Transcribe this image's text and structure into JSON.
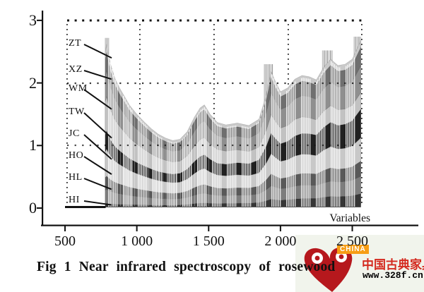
{
  "figure": {
    "caption": "Fig 1  Near infrared spectroscopy of rosewood",
    "x_axis_label": "Variables",
    "x_tick_labels": [
      "500",
      "1 000",
      "1 500",
      "2 000",
      "2 500"
    ],
    "x_tick_values": [
      500,
      1000,
      1500,
      2000,
      2500
    ],
    "y_tick_labels": [
      "0",
      "1",
      "2",
      "3"
    ],
    "y_tick_values": [
      0,
      1,
      2,
      3
    ]
  },
  "series_labels": [
    {
      "text": "ZT",
      "points_to_value": 2.4
    },
    {
      "text": "XZ",
      "points_to_value": 2.06
    },
    {
      "text": "WM",
      "points_to_value": 1.58
    },
    {
      "text": "TW",
      "points_to_value": 1.12
    },
    {
      "text": "JC",
      "points_to_value": 0.78
    },
    {
      "text": "HO",
      "points_to_value": 0.54
    },
    {
      "text": "HL",
      "points_to_value": 0.3
    },
    {
      "text": "HI",
      "points_to_value": 0.05
    }
  ],
  "watermark": {
    "badge": "CHINA",
    "site_name": "中国古典家具网",
    "url": "www.328f.cn",
    "logo": "ruyi-heart-logo",
    "colors": {
      "logo_red": "#b6181d",
      "badge_orange": "#f79d15",
      "site_red": "#d42a1f",
      "panel": "#f1f4ec"
    }
  },
  "chart_data": {
    "type": "area",
    "title": "Fig 1  Near infrared spectroscopy of rosewood",
    "xlabel": "Variables",
    "ylabel": "",
    "xlim": [
      340,
      2940
    ],
    "ylim": [
      0,
      3
    ],
    "x_ticks": [
      500,
      1000,
      1500,
      2000,
      2500
    ],
    "y_ticks": [
      0,
      1,
      2,
      3
    ],
    "grid": "dotted rows at y=1,2,3 and dotted columns at each x tick",
    "data_x_range": [
      780,
      2560
    ],
    "envelope": {
      "x": [
        780,
        790,
        800,
        820,
        850,
        880,
        910,
        950,
        1000,
        1050,
        1100,
        1150,
        1200,
        1250,
        1300,
        1350,
        1400,
        1440,
        1470,
        1510,
        1560,
        1620,
        1700,
        1780,
        1850,
        1900,
        1935,
        1965,
        2000,
        2050,
        2100,
        2150,
        2200,
        2250,
        2300,
        2350,
        2400,
        2450,
        2500,
        2560
      ],
      "y": [
        2.5,
        2.62,
        2.48,
        2.28,
        2.06,
        1.92,
        1.8,
        1.64,
        1.5,
        1.38,
        1.27,
        1.18,
        1.12,
        1.08,
        1.1,
        1.22,
        1.45,
        1.6,
        1.65,
        1.5,
        1.37,
        1.33,
        1.36,
        1.32,
        1.42,
        1.8,
        2.18,
        2.02,
        1.86,
        1.92,
        2.06,
        2.12,
        2.1,
        2.05,
        2.25,
        2.38,
        2.28,
        2.3,
        2.38,
        2.68
      ]
    },
    "bands_bottom_to_top": [
      {
        "name": "HI",
        "color": "#363636",
        "fraction_start": 0.028,
        "fraction_end": 0.085,
        "value_at_780": 0.07,
        "value_at_2560": 0.23
      },
      {
        "name": "HL",
        "color": "#7d7d7d",
        "fraction_start": 0.115,
        "fraction_end": 0.19,
        "value_at_780": 0.29,
        "value_at_2560": 0.51
      },
      {
        "name": "HO",
        "color": "#595959",
        "fraction_start": 0.195,
        "fraction_end": 0.28,
        "value_at_780": 0.49,
        "value_at_2560": 0.75
      },
      {
        "name": "JC",
        "color": "#c8c8c8",
        "fraction_start": 0.36,
        "fraction_end": 0.42,
        "value_at_780": 0.9,
        "value_at_2560": 1.13
      },
      {
        "name": "TW",
        "color": "#212121",
        "fraction_start": 0.47,
        "fraction_end": 0.59,
        "value_at_780": 1.18,
        "value_at_2560": 1.58
      },
      {
        "name": "WM",
        "color": "#c2c2c2",
        "fraction_start": 0.68,
        "fraction_end": 0.69,
        "value_at_780": 1.7,
        "value_at_2560": 1.85
      },
      {
        "name": "XZ",
        "color": "#8f8f8f",
        "fraction_start": 0.84,
        "fraction_end": 0.85,
        "value_at_780": 2.1,
        "value_at_2560": 2.28
      },
      {
        "name": "ZT",
        "color": "#6f6f6f",
        "fraction_start": 0.95,
        "fraction_end": 0.96,
        "value_at_780": 2.38,
        "value_at_2560": 2.57
      }
    ],
    "fringe_color": "#c9c9c9",
    "spike_zones": [
      {
        "x1": 778,
        "x2": 806,
        "top": 2.72
      },
      {
        "x1": 1885,
        "x2": 1950,
        "top": 2.3
      },
      {
        "x1": 2290,
        "x2": 2360,
        "top": 2.52
      },
      {
        "x1": 2510,
        "x2": 2562,
        "top": 2.74
      }
    ],
    "baseline_segment": {
      "x1": 500,
      "x2": 783,
      "value": 0.02
    }
  }
}
